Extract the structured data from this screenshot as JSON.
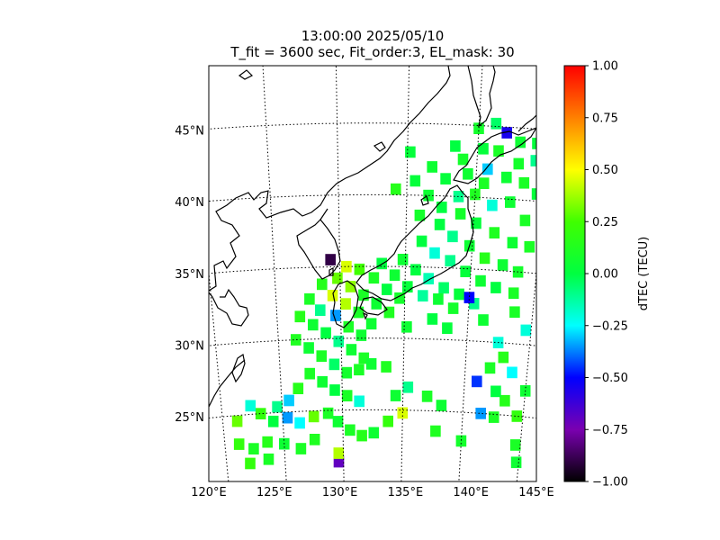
{
  "chart_data": {
    "type": "heatmap",
    "title": "13:00:00 2025/05/10",
    "subtitle": "T_fit = 3600 sec, Fit_order:3, EL_mask: 30",
    "map": {
      "lon_range": [
        120,
        145
      ],
      "lat_range": [
        20,
        49
      ],
      "lon_ticks": [
        "120°E",
        "125°E",
        "130°E",
        "135°E",
        "140°E",
        "145°E"
      ],
      "lat_ticks": [
        "25°N",
        "30°N",
        "35°N",
        "40°N",
        "45°N"
      ],
      "grid": true
    },
    "colorbar": {
      "label": "dTEC (TECU)",
      "range": [
        -1.0,
        1.0
      ],
      "ticks": [
        "1.00",
        "0.75",
        "0.50",
        "0.25",
        "0.00",
        "−0.25",
        "−0.50",
        "−0.75",
        "−1.00"
      ]
    },
    "cell_size_deg": 0.8,
    "cells": [
      [
        135.2,
        43.0,
        0.02
      ],
      [
        136.8,
        42.0,
        0.05
      ],
      [
        138.4,
        43.5,
        0.0
      ],
      [
        140.0,
        44.8,
        0.08
      ],
      [
        141.2,
        45.2,
        -0.05
      ],
      [
        142.0,
        44.6,
        -0.55
      ],
      [
        143.0,
        44.0,
        0.05
      ],
      [
        144.2,
        44.0,
        0.02
      ],
      [
        141.5,
        43.3,
        0.1
      ],
      [
        143.0,
        42.5,
        0.08
      ],
      [
        144.2,
        42.8,
        -0.1
      ],
      [
        140.8,
        42.0,
        -0.3
      ],
      [
        142.2,
        41.5,
        0.05
      ],
      [
        143.5,
        41.2,
        0.1
      ],
      [
        140.0,
        40.2,
        0.12
      ],
      [
        141.3,
        39.5,
        -0.2
      ],
      [
        142.6,
        39.8,
        0.05
      ],
      [
        143.8,
        38.6,
        0.1
      ],
      [
        144.5,
        40.5,
        0.02
      ],
      [
        139.0,
        38.8,
        0.08
      ],
      [
        140.2,
        38.2,
        0.02
      ],
      [
        141.6,
        37.6,
        0.12
      ],
      [
        143.0,
        37.0,
        0.05
      ],
      [
        144.3,
        36.8,
        0.1
      ],
      [
        137.5,
        38.0,
        0.0
      ],
      [
        138.5,
        37.2,
        -0.1
      ],
      [
        139.8,
        36.6,
        0.05
      ],
      [
        141.0,
        35.8,
        0.15
      ],
      [
        142.4,
        35.4,
        0.05
      ],
      [
        143.6,
        35.0,
        0.08
      ],
      [
        136.2,
        36.8,
        0.0
      ],
      [
        137.2,
        36.0,
        -0.2
      ],
      [
        138.4,
        35.5,
        -0.1
      ],
      [
        139.6,
        34.8,
        0.02
      ],
      [
        140.8,
        34.2,
        0.05
      ],
      [
        142.0,
        33.8,
        0.0
      ],
      [
        143.4,
        33.5,
        0.1
      ],
      [
        134.8,
        35.5,
        0.05
      ],
      [
        135.8,
        34.8,
        0.0
      ],
      [
        136.8,
        34.2,
        -0.15
      ],
      [
        138.0,
        33.6,
        -0.05
      ],
      [
        139.2,
        33.2,
        0.02
      ],
      [
        140.4,
        32.6,
        -0.1
      ],
      [
        133.2,
        35.2,
        0.0
      ],
      [
        134.2,
        34.4,
        0.05
      ],
      [
        135.2,
        33.6,
        0.02
      ],
      [
        136.4,
        33.0,
        -0.12
      ],
      [
        137.6,
        32.8,
        0.05
      ],
      [
        138.8,
        32.2,
        0.08
      ],
      [
        131.5,
        34.8,
        0.25
      ],
      [
        132.6,
        34.2,
        0.1
      ],
      [
        133.6,
        33.4,
        0.0
      ],
      [
        134.6,
        32.8,
        0.08
      ],
      [
        130.5,
        35.0,
        0.45
      ],
      [
        129.8,
        34.2,
        0.3
      ],
      [
        130.8,
        33.6,
        0.35
      ],
      [
        131.8,
        33.0,
        0.1
      ],
      [
        132.8,
        32.4,
        0.05
      ],
      [
        133.8,
        31.8,
        0.12
      ],
      [
        129.3,
        35.5,
        -0.9
      ],
      [
        128.6,
        33.8,
        0.15
      ],
      [
        129.4,
        33.0,
        0.45
      ],
      [
        130.4,
        32.4,
        0.4
      ],
      [
        131.4,
        31.8,
        0.1
      ],
      [
        132.4,
        31.0,
        0.05
      ],
      [
        127.6,
        32.8,
        0.1
      ],
      [
        128.4,
        32.0,
        -0.1
      ],
      [
        129.6,
        31.6,
        -0.35
      ],
      [
        130.6,
        30.8,
        0.1
      ],
      [
        131.6,
        30.2,
        0.05
      ],
      [
        126.8,
        31.6,
        0.15
      ],
      [
        127.8,
        31.0,
        0.05
      ],
      [
        128.8,
        30.4,
        0.0
      ],
      [
        129.8,
        29.8,
        -0.1
      ],
      [
        130.8,
        29.2,
        0.05
      ],
      [
        131.8,
        28.6,
        0.1
      ],
      [
        126.4,
        30.0,
        0.12
      ],
      [
        127.4,
        29.4,
        0.05
      ],
      [
        128.4,
        28.8,
        0.1
      ],
      [
        129.4,
        28.2,
        -0.05
      ],
      [
        130.4,
        27.6,
        0.08
      ],
      [
        131.4,
        27.8,
        0.1
      ],
      [
        132.4,
        28.2,
        0.05
      ],
      [
        133.6,
        28.0,
        0.12
      ],
      [
        127.4,
        27.6,
        0.1
      ],
      [
        128.4,
        27.0,
        0.05
      ],
      [
        129.4,
        26.4,
        0.0
      ],
      [
        130.4,
        26.0,
        0.1
      ],
      [
        131.4,
        25.6,
        -0.2
      ],
      [
        126.4,
        26.6,
        0.15
      ],
      [
        125.6,
        25.8,
        -0.3
      ],
      [
        124.6,
        25.4,
        -0.1
      ],
      [
        123.2,
        25.0,
        0.2
      ],
      [
        122.4,
        25.6,
        -0.2
      ],
      [
        121.2,
        24.6,
        0.3
      ],
      [
        124.2,
        24.4,
        0.0
      ],
      [
        125.4,
        24.6,
        -0.35
      ],
      [
        126.4,
        24.2,
        -0.25
      ],
      [
        127.6,
        24.6,
        0.3
      ],
      [
        128.8,
        24.8,
        0.1
      ],
      [
        129.6,
        24.2,
        0.05
      ],
      [
        130.6,
        23.6,
        0.1
      ],
      [
        131.6,
        23.2,
        0.15
      ],
      [
        132.6,
        23.4,
        0.05
      ],
      [
        133.8,
        24.2,
        0.2
      ],
      [
        135.0,
        24.8,
        0.45
      ],
      [
        134.4,
        26.0,
        0.05
      ],
      [
        135.4,
        26.6,
        -0.1
      ],
      [
        137.0,
        26.0,
        0.1
      ],
      [
        138.2,
        25.4,
        0.05
      ],
      [
        137.8,
        23.6,
        0.12
      ],
      [
        140.0,
        23.0,
        0.08
      ],
      [
        141.5,
        25.0,
        -0.35
      ],
      [
        142.6,
        24.8,
        0.1
      ],
      [
        143.4,
        26.0,
        0.15
      ],
      [
        144.5,
        25.0,
        0.2
      ],
      [
        145.0,
        26.8,
        0.05
      ],
      [
        142.6,
        26.6,
        0.0
      ],
      [
        141.0,
        27.2,
        -0.45
      ],
      [
        142.0,
        28.2,
        0.1
      ],
      [
        143.0,
        29.0,
        0.15
      ],
      [
        143.8,
        28.0,
        -0.25
      ],
      [
        142.5,
        30.0,
        -0.2
      ],
      [
        141.2,
        31.5,
        0.05
      ],
      [
        143.6,
        32.2,
        0.1
      ],
      [
        144.6,
        31.0,
        -0.2
      ],
      [
        144.6,
        23.0,
        0.1
      ],
      [
        144.8,
        21.8,
        0.05
      ],
      [
        140.0,
        33.0,
        -0.5
      ],
      [
        137.2,
        31.4,
        0.0
      ],
      [
        135.2,
        30.8,
        0.05
      ],
      [
        138.4,
        30.8,
        0.02
      ],
      [
        129.6,
        21.4,
        -0.7
      ],
      [
        129.6,
        22.0,
        0.4
      ],
      [
        121.2,
        23.0,
        0.2
      ],
      [
        122.4,
        22.6,
        0.1
      ],
      [
        123.6,
        23.0,
        0.15
      ],
      [
        125.0,
        22.8,
        0.05
      ],
      [
        126.4,
        22.4,
        0.1
      ],
      [
        127.6,
        23.0,
        0.12
      ],
      [
        122.0,
        21.6,
        0.2
      ],
      [
        123.6,
        21.8,
        0.1
      ],
      [
        135.6,
        41.0,
        0.02
      ],
      [
        136.6,
        40.0,
        0.05
      ],
      [
        137.6,
        39.2,
        0.0
      ],
      [
        136.0,
        38.6,
        0.08
      ],
      [
        138.8,
        40.0,
        -0.1
      ],
      [
        140.6,
        41.0,
        0.1
      ],
      [
        139.4,
        41.6,
        0.05
      ],
      [
        137.8,
        41.2,
        0.02
      ],
      [
        139.0,
        42.6,
        0.08
      ],
      [
        140.4,
        43.4,
        0.02
      ],
      [
        134.2,
        40.4,
        0.15
      ]
    ]
  }
}
